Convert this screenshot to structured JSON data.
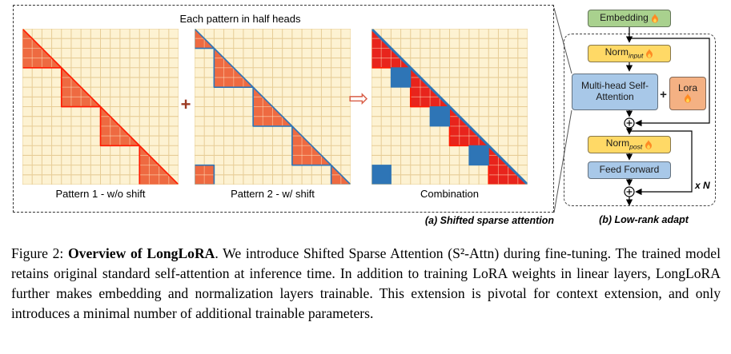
{
  "figure": {
    "panel_a": {
      "title": "Each pattern in half heads",
      "caption": "(a) Shifted sparse attention",
      "plus_symbol": "+",
      "arrow_symbol": "⇨",
      "patterns": [
        {
          "label": "Pattern 1 - w/o shift",
          "type": "p1"
        },
        {
          "label": "Pattern 2 - w/ shift",
          "type": "p2"
        },
        {
          "label": "Combination",
          "type": "combo"
        }
      ],
      "grid": {
        "size": 16,
        "group": 4,
        "shift": 2
      },
      "colors": {
        "panel_bg": "#fdf2d2",
        "grid_line": "#e7cd97",
        "block_fill": "#ee6a41",
        "p1_border": "#ff1a00",
        "p2_border": "#2e75b6",
        "combo_red": "#e8241c",
        "combo_blue": "#2e75b6"
      }
    },
    "panel_b": {
      "caption": "(b) Low-rank adapt",
      "embedding_label": "Embedding",
      "norm_input_label": "Norm",
      "norm_input_sub": "input",
      "mhsa_label": "Multi-head Self-Attention",
      "plus_label": "+",
      "lora_label": "Lora",
      "norm_post_label": "Norm",
      "norm_post_sub": "post",
      "ffn_label": "Feed Forward",
      "repeat_label": "x N",
      "colors": {
        "embedding": "#a9d18e",
        "norm": "#ffd966",
        "attn": "#a8c8e8",
        "lora": "#f4b183"
      }
    },
    "caption": {
      "prefix": "Figure 2: ",
      "bold": "Overview of LongLoRA",
      "body": ". We introduce Shifted Sparse Attention (S²-Attn) during fine-tuning. The trained model retains original standard self-attention at inference time. In addition to training LoRA weights in linear layers, LongLoRA further makes embedding and normalization layers trainable. This extension is pivotal for context extension, and only introduces a minimal number of additional trainable parameters."
    }
  }
}
